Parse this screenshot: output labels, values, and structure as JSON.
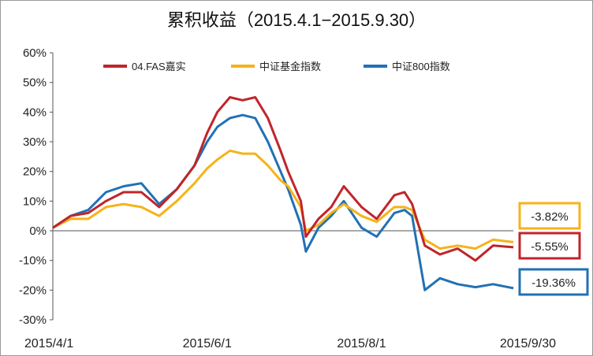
{
  "chart_data": {
    "type": "line",
    "title": "累积收益（2015.4.1−2015.9.30）",
    "xlabel": "",
    "ylabel": "",
    "ylim": [
      -30,
      60
    ],
    "y_ticks": [
      "60%",
      "50%",
      "40%",
      "30%",
      "20%",
      "10%",
      "0%",
      "-10%",
      "-20%",
      "-30%"
    ],
    "x_ticks": [
      "2015/4/1",
      "2015/6/1",
      "2015/8/1",
      "2015/9/30"
    ],
    "x_range": [
      "2015/4/1",
      "2015/9/30"
    ],
    "legend_position": "top",
    "grid": false,
    "x": [
      "2015/4/1",
      "2015/4/8",
      "2015/4/15",
      "2015/4/22",
      "2015/4/29",
      "2015/5/6",
      "2015/5/13",
      "2015/5/20",
      "2015/5/27",
      "2015/6/1",
      "2015/6/5",
      "2015/6/10",
      "2015/6/15",
      "2015/6/20",
      "2015/6/25",
      "2015/6/30",
      "2015/7/3",
      "2015/7/8",
      "2015/7/10",
      "2015/7/15",
      "2015/7/20",
      "2015/7/25",
      "2015/8/1",
      "2015/8/7",
      "2015/8/14",
      "2015/8/18",
      "2015/8/21",
      "2015/8/26",
      "2015/9/1",
      "2015/9/8",
      "2015/9/15",
      "2015/9/22",
      "2015/9/30"
    ],
    "series": [
      {
        "name": "04.FAS嘉实",
        "color": "#c0252a",
        "end_label": "-5.55%",
        "values": [
          1,
          5,
          6,
          10,
          13,
          13,
          8,
          14,
          22,
          33,
          40,
          45,
          44,
          45,
          38,
          27,
          20,
          10,
          -2,
          4,
          8,
          15,
          8,
          4,
          12,
          13,
          9,
          -5,
          -8,
          -6,
          -10,
          -5,
          -5.55
        ]
      },
      {
        "name": "中证基金指数",
        "color": "#f5b31a",
        "end_label": "-3.82%",
        "values": [
          1,
          4,
          4,
          8,
          9,
          8,
          5,
          10,
          16,
          21,
          24,
          27,
          26,
          26,
          22,
          17,
          15,
          8,
          0,
          2,
          6,
          9,
          5,
          3,
          8,
          8,
          7,
          -3,
          -6,
          -5,
          -6,
          -3,
          -3.82
        ]
      },
      {
        "name": "中证800指数",
        "color": "#2171b5",
        "end_label": "-19.36%",
        "values": [
          1,
          5,
          7,
          13,
          15,
          16,
          9,
          14,
          22,
          30,
          35,
          38,
          39,
          38,
          30,
          20,
          14,
          2,
          -7,
          1,
          5,
          10,
          1,
          -2,
          6,
          7,
          5,
          -20,
          -16,
          -18,
          -19,
          -18,
          -19.36
        ]
      }
    ]
  }
}
